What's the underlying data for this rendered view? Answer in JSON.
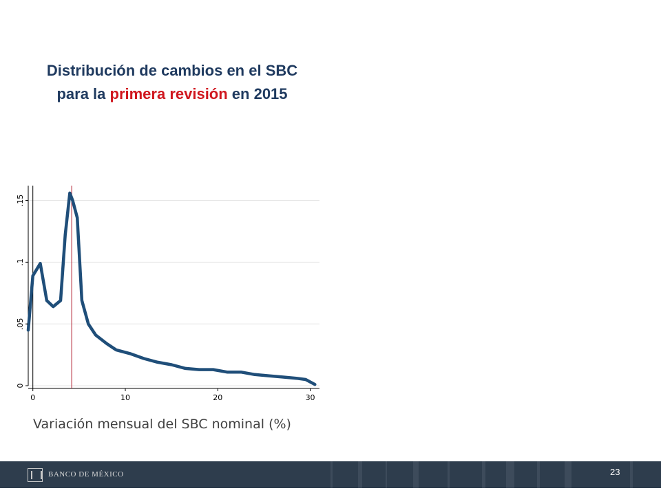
{
  "title": {
    "line1": "Distribución de cambios en el SBC",
    "line2_pre": "para la ",
    "line2_highlight": "primera revisión",
    "line2_post": " en 2015"
  },
  "x_caption": "Variación mensual del SBC nominal (%)",
  "footer": {
    "logo_text": "BANCO DE MÉXICO",
    "page_number": "23"
  },
  "colors": {
    "title": "#1f3a5f",
    "highlight": "#d0171f",
    "curve": "#1f4e79",
    "marker": "#b22234",
    "footer_bg": "#2e3d4d"
  },
  "chart_data": {
    "type": "line",
    "xlim": [
      -0.5,
      31
    ],
    "ylim": [
      0,
      0.162
    ],
    "x_ticks": [
      0,
      10,
      20,
      30
    ],
    "x_tick_labels": [
      "0",
      "10",
      "20",
      "30"
    ],
    "y_ticks": [
      0,
      0.05,
      0.1,
      0.15
    ],
    "y_tick_labels": [
      "0",
      ".05",
      ".1",
      ".15"
    ],
    "grid": true,
    "reference_lines": [
      0,
      4.2
    ],
    "series": [
      {
        "x": [
          -0.5,
          0,
          0.8,
          1.5,
          2.2,
          3.0,
          3.5,
          4.0,
          4.3,
          4.8,
          5.3,
          6.0,
          6.8,
          8.0,
          9.0,
          10.5,
          12.0,
          13.5,
          15.0,
          16.5,
          18.0,
          19.5,
          21.0,
          22.5,
          24.0,
          25.5,
          27.0,
          28.5,
          29.5,
          30.5
        ],
        "y": [
          0.045,
          0.089,
          0.099,
          0.069,
          0.064,
          0.069,
          0.122,
          0.156,
          0.15,
          0.136,
          0.069,
          0.05,
          0.041,
          0.034,
          0.029,
          0.026,
          0.022,
          0.019,
          0.017,
          0.014,
          0.013,
          0.013,
          0.011,
          0.011,
          0.009,
          0.008,
          0.007,
          0.006,
          0.005,
          0.001
        ]
      }
    ]
  }
}
